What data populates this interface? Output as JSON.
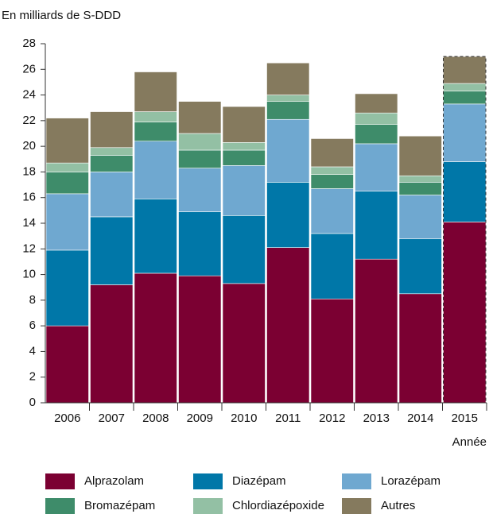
{
  "chart_data": {
    "type": "stacked_bar",
    "title": "En milliards de S-DDD",
    "x_label": "Année",
    "categories": [
      "2006",
      "2007",
      "2008",
      "2009",
      "2010",
      "2011",
      "2012",
      "2013",
      "2014",
      "2015"
    ],
    "series": [
      {
        "name": "Alprazolam",
        "color": "#7b0032",
        "values": [
          6.0,
          9.2,
          10.1,
          9.9,
          9.3,
          12.1,
          8.1,
          11.2,
          8.5,
          14.1
        ]
      },
      {
        "name": "Diazépam",
        "color": "#0077a8",
        "values": [
          5.9,
          5.3,
          5.8,
          5.0,
          5.3,
          5.1,
          5.1,
          5.3,
          4.3,
          4.7
        ]
      },
      {
        "name": "Lorazépam",
        "color": "#6fa8d0",
        "values": [
          4.4,
          3.5,
          4.5,
          3.4,
          3.9,
          4.9,
          3.5,
          3.7,
          3.4,
          4.5
        ]
      },
      {
        "name": "Bromazépam",
        "color": "#3e8c6a",
        "values": [
          1.7,
          1.3,
          1.5,
          1.4,
          1.2,
          1.4,
          1.1,
          1.5,
          1.0,
          1.0
        ]
      },
      {
        "name": "Chlordiazépoxide",
        "color": "#93c0a4",
        "values": [
          0.7,
          0.6,
          0.8,
          1.3,
          0.6,
          0.5,
          0.6,
          0.9,
          0.5,
          0.6
        ]
      },
      {
        "name": "Autres",
        "color": "#857a5e",
        "values": [
          3.5,
          2.8,
          3.1,
          2.5,
          2.8,
          2.5,
          2.2,
          1.5,
          3.1,
          2.1
        ]
      }
    ],
    "ylim": [
      0,
      28
    ],
    "yticks": [
      0,
      2,
      4,
      6,
      8,
      10,
      12,
      14,
      16,
      18,
      20,
      22,
      24,
      26,
      28
    ],
    "grid": false,
    "legend": "bottom"
  }
}
